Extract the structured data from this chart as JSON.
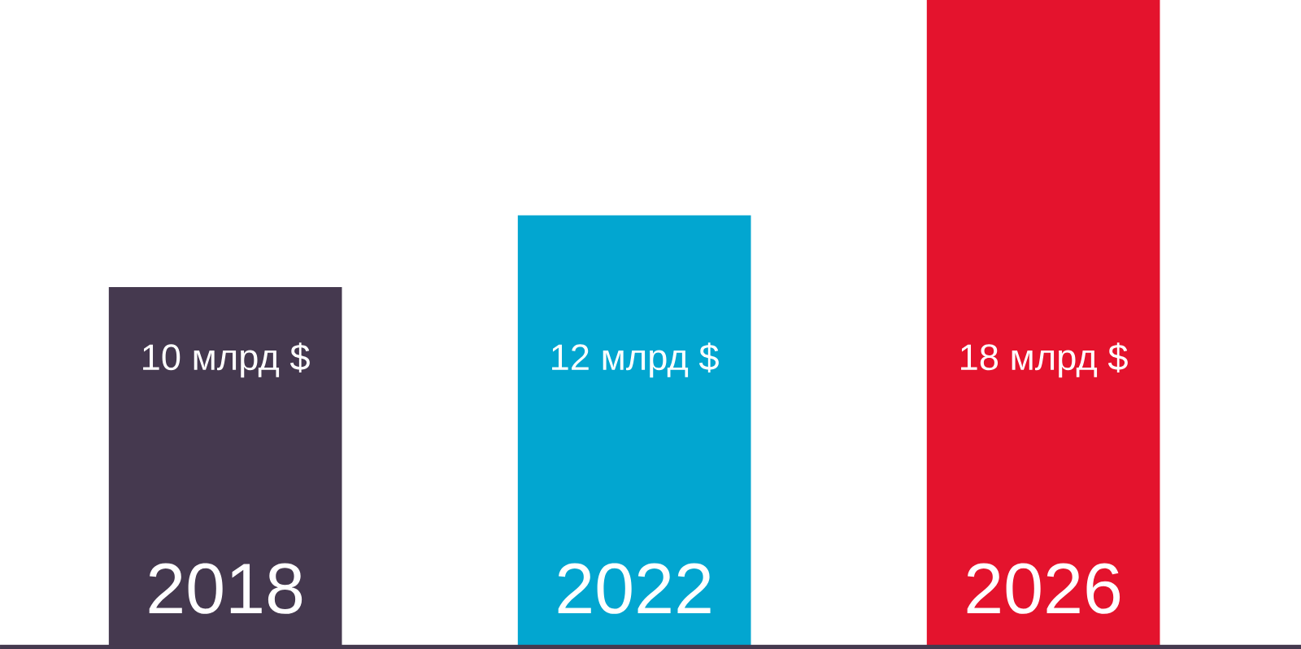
{
  "chart_data": {
    "type": "bar",
    "categories": [
      "2018",
      "2022",
      "2026"
    ],
    "values": [
      10,
      12,
      18
    ],
    "colors": [
      "#45394f",
      "#02a6d0",
      "#e4132d"
    ],
    "value_labels": [
      "10 млрд $",
      "12 млрд $",
      "18 млрд $"
    ],
    "ylim": [
      0,
      18
    ]
  }
}
